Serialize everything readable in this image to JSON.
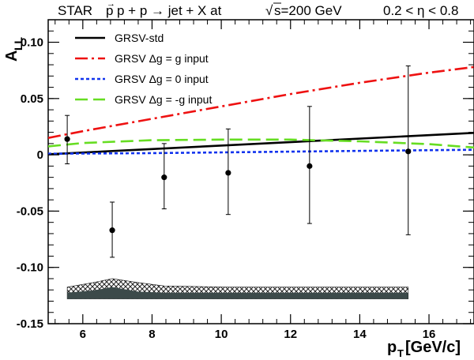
{
  "chart_data": {
    "type": "line",
    "title_parts": {
      "experiment": "STAR",
      "reaction": "p + p → jet + X at ",
      "energy": "s=200 GeV",
      "eta_range": "0.2 < η < 0.8"
    },
    "xlabel": {
      "main": "p",
      "sub": "T",
      "unit": " [GeV/c]"
    },
    "ylabel": {
      "main": "A",
      "sub": "LL"
    },
    "xlim": [
      5.0,
      17.3
    ],
    "ylim": [
      -0.15,
      0.12
    ],
    "xticks": [
      6,
      8,
      10,
      12,
      14,
      16
    ],
    "xtick_labels": [
      "6",
      "8",
      "10",
      "12",
      "14",
      "16"
    ],
    "yticks": [
      -0.15,
      -0.1,
      -0.05,
      0,
      0.05,
      0.1
    ],
    "ytick_labels": [
      "-0.15",
      "-0.10",
      "-0.05",
      "0",
      "0.05",
      "0.10"
    ],
    "series": [
      {
        "name": "GRSV-std",
        "color": "#000000",
        "style": "solid",
        "x": [
          5.0,
          17.3
        ],
        "y": [
          0.0005,
          0.0195
        ]
      },
      {
        "name": "GRSV  Δg = g input",
        "color": "#ee1111",
        "style": "dashdot",
        "x": [
          5.0,
          6.0,
          8.0,
          10.0,
          12.0,
          14.0,
          16.0,
          17.3
        ],
        "y": [
          0.015,
          0.021,
          0.032,
          0.043,
          0.054,
          0.064,
          0.073,
          0.078
        ]
      },
      {
        "name": "GRSV  Δg = 0 input",
        "color": "#1133ee",
        "style": "dotted",
        "x": [
          5.0,
          8.0,
          11.0,
          14.0,
          17.3
        ],
        "y": [
          0.001,
          0.0015,
          0.0025,
          0.0035,
          0.0045
        ]
      },
      {
        "name": "GRSV  Δg = -g input",
        "color": "#66dd22",
        "style": "dashed",
        "x": [
          5.0,
          6.0,
          8.0,
          10.0,
          12.0,
          14.0,
          16.0,
          17.3
        ],
        "y": [
          0.0075,
          0.0105,
          0.013,
          0.0135,
          0.0135,
          0.012,
          0.0095,
          0.0065
        ]
      }
    ],
    "data_points": [
      {
        "x": 5.55,
        "y": 0.014,
        "err_low": 0.022,
        "err_high": 0.021
      },
      {
        "x": 6.85,
        "y": -0.067,
        "err_low": 0.024,
        "err_high": 0.025
      },
      {
        "x": 8.35,
        "y": -0.02,
        "err_low": 0.028,
        "err_high": 0.03
      },
      {
        "x": 10.2,
        "y": -0.016,
        "err_low": 0.037,
        "err_high": 0.039
      },
      {
        "x": 12.55,
        "y": -0.01,
        "err_low": 0.051,
        "err_high": 0.053
      },
      {
        "x": 15.4,
        "y": 0.003,
        "err_low": 0.074,
        "err_high": 0.076
      }
    ],
    "systematic_band": {
      "x": [
        5.55,
        6.3,
        6.85,
        7.6,
        8.35,
        10.2,
        12.55,
        15.4
      ],
      "base": -0.128,
      "inner_top": [
        -0.1225,
        -0.1205,
        -0.1175,
        -0.1215,
        -0.1225,
        -0.1225,
        -0.1225,
        -0.1225
      ],
      "outer_top": [
        -0.1175,
        -0.1135,
        -0.11,
        -0.1135,
        -0.1165,
        -0.1175,
        -0.1175,
        -0.1175
      ],
      "fill_color": "#3c4a4a"
    },
    "legend_position": "top-left",
    "grid": false
  }
}
